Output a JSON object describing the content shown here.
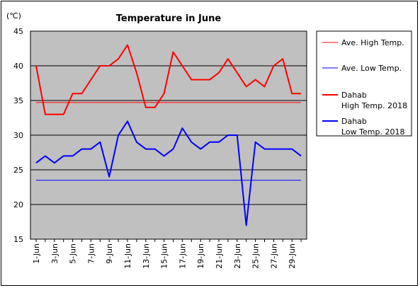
{
  "chart_data": {
    "type": "line",
    "title": "Temperature in June",
    "unit_label": "(℃)",
    "ylim": [
      15,
      45
    ],
    "y_ticks": [
      "15",
      "20",
      "25",
      "30",
      "35",
      "40",
      "45"
    ],
    "x": [
      "1-Jun",
      "2-Jun",
      "3-Jun",
      "4-Jun",
      "5-Jun",
      "6-Jun",
      "7-Jun",
      "8-Jun",
      "9-Jun",
      "10-Jun",
      "11-Jun",
      "12-Jun",
      "13-Jun",
      "14-Jun",
      "15-Jun",
      "16-Jun",
      "17-Jun",
      "18-Jun",
      "19-Jun",
      "20-Jun",
      "21-Jun",
      "22-Jun",
      "23-Jun",
      "24-Jun",
      "25-Jun",
      "26-Jun",
      "27-Jun",
      "28-Jun",
      "29-Jun",
      "30-Jun"
    ],
    "x_tick_labels": [
      "1-Jun",
      "3-Jun",
      "5-Jun",
      "7-Jun",
      "9-Jun",
      "11-Jun",
      "13-Jun",
      "15-Jun",
      "17-Jun",
      "19-Jun",
      "21-Jun",
      "23-Jun",
      "25-Jun",
      "27-Jun",
      "29-Jun"
    ],
    "grid": true,
    "legend_position": "right",
    "series": [
      {
        "name": "Ave. High Temp.",
        "color": "#ff0000",
        "style": "thin",
        "values": [
          34.7,
          34.7,
          34.7,
          34.7,
          34.7,
          34.7,
          34.7,
          34.7,
          34.7,
          34.7,
          34.7,
          34.7,
          34.7,
          34.7,
          34.7,
          34.7,
          34.7,
          34.7,
          34.7,
          34.7,
          34.7,
          34.7,
          34.7,
          34.7,
          34.7,
          34.7,
          34.7,
          34.7,
          34.7,
          34.7
        ]
      },
      {
        "name": "Ave. Low Temp.",
        "color": "#0000ff",
        "style": "thin",
        "values": [
          23.5,
          23.5,
          23.5,
          23.5,
          23.5,
          23.5,
          23.5,
          23.5,
          23.5,
          23.5,
          23.5,
          23.5,
          23.5,
          23.5,
          23.5,
          23.5,
          23.5,
          23.5,
          23.5,
          23.5,
          23.5,
          23.5,
          23.5,
          23.5,
          23.5,
          23.5,
          23.5,
          23.5,
          23.5,
          23.5
        ]
      },
      {
        "name": "Dahab High Temp. 2018",
        "legend_lines": [
          "Dahab",
          "High Temp. 2018"
        ],
        "color": "#ff0000",
        "style": "thick",
        "values": [
          40,
          33,
          33,
          33,
          36,
          36,
          38,
          40,
          40,
          41,
          43,
          39,
          34,
          34,
          36,
          42,
          40,
          38,
          38,
          38,
          39,
          41,
          39,
          37,
          38,
          37,
          40,
          41,
          36,
          36
        ]
      },
      {
        "name": "Dahab Low Temp. 2018",
        "legend_lines": [
          "Dahab",
          "Low Temp. 2018"
        ],
        "color": "#0000ff",
        "style": "thick",
        "values": [
          26,
          27,
          26,
          27,
          27,
          28,
          28,
          29,
          24,
          30,
          32,
          29,
          28,
          28,
          27,
          28,
          31,
          29,
          28,
          29,
          29,
          30,
          30,
          17,
          29,
          28,
          28,
          28,
          28,
          27
        ]
      }
    ]
  }
}
